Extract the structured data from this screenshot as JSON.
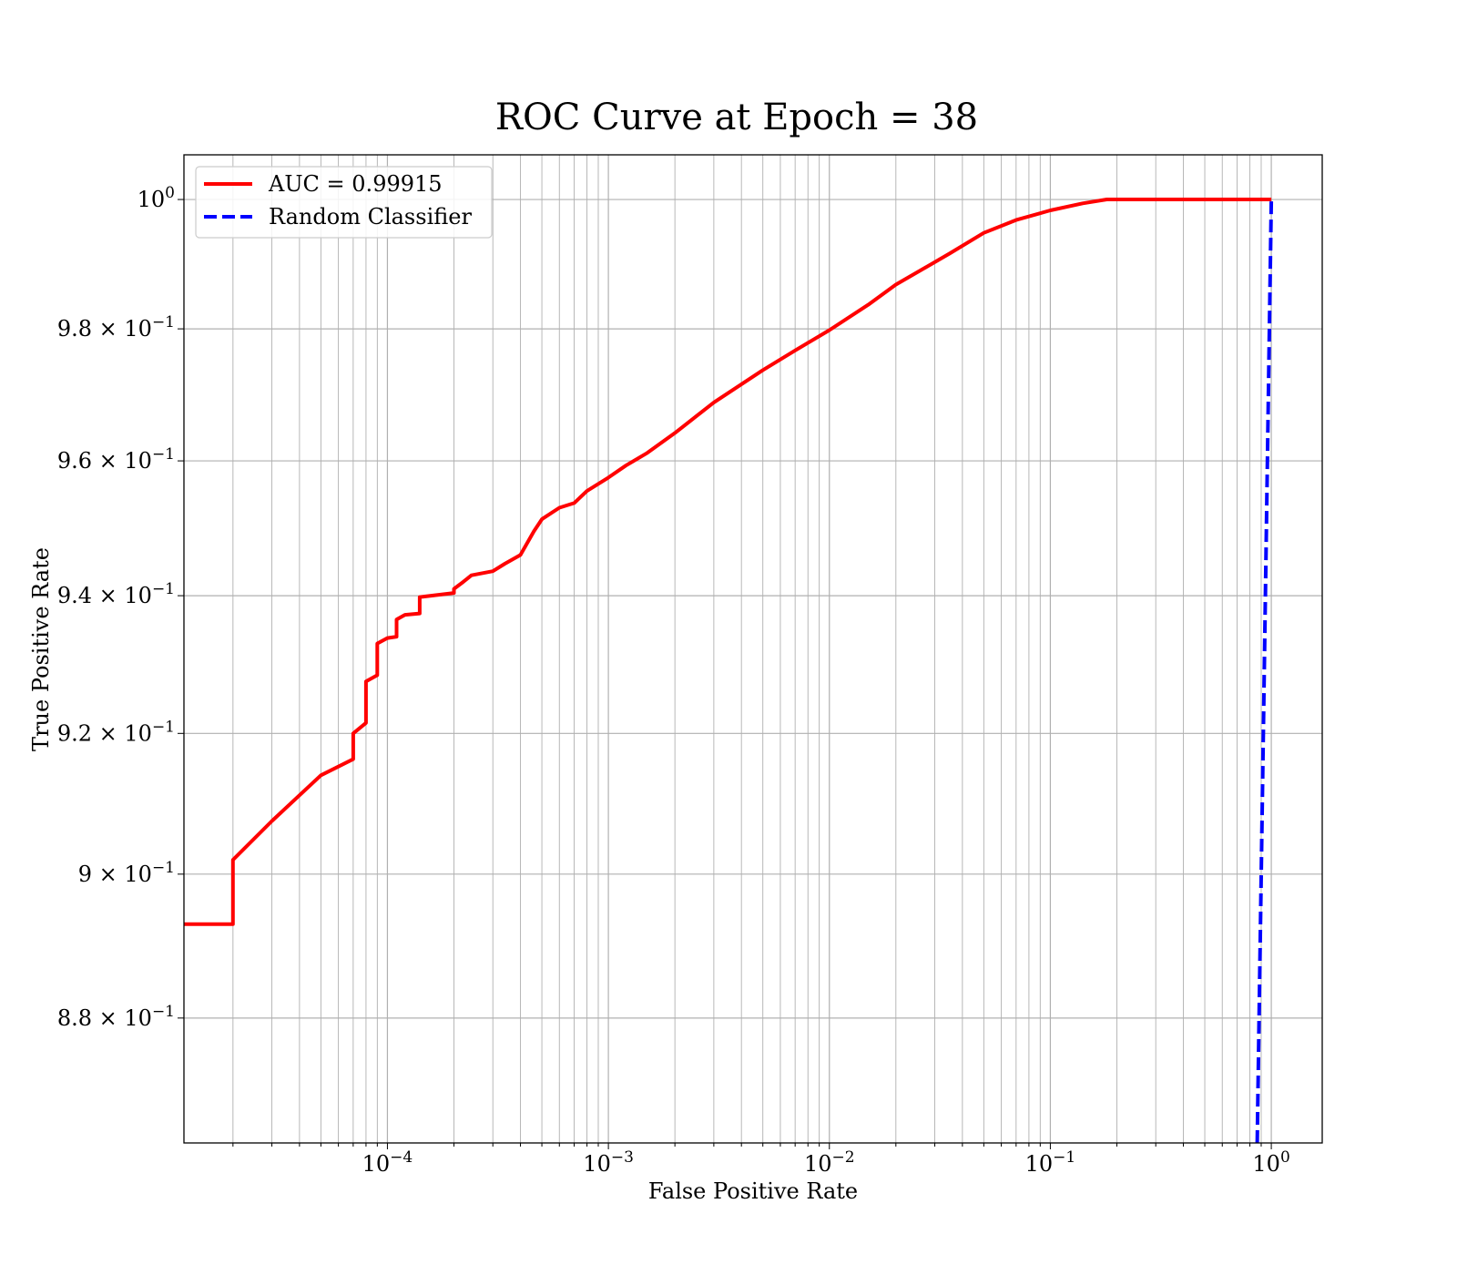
{
  "chart_data": {
    "type": "line",
    "title": "ROC Curve at Epoch = 38",
    "xlabel": "False Positive Rate",
    "ylabel": "True Positive Rate",
    "xscale": "log",
    "yscale": "log",
    "xlim": [
      1.2e-05,
      1.7
    ],
    "ylim": [
      0.863,
      1.007
    ],
    "grid": true,
    "grid_minor": true,
    "legend_position": "upper-left",
    "x_ticks": [
      {
        "value": 0.0001,
        "base": "10",
        "exp": "−4"
      },
      {
        "value": 0.001,
        "base": "10",
        "exp": "−3"
      },
      {
        "value": 0.01,
        "base": "10",
        "exp": "−2"
      },
      {
        "value": 0.1,
        "base": "10",
        "exp": "−1"
      },
      {
        "value": 1,
        "base": "10",
        "exp": "0"
      }
    ],
    "y_ticks": [
      {
        "value": 1.0,
        "base": "10",
        "exp": "0"
      },
      {
        "value": 0.98,
        "base": "9.8 × 10",
        "exp": "−1"
      },
      {
        "value": 0.96,
        "base": "9.6 × 10",
        "exp": "−1"
      },
      {
        "value": 0.94,
        "base": "9.4 × 10",
        "exp": "−1"
      },
      {
        "value": 0.92,
        "base": "9.2 × 10",
        "exp": "−1"
      },
      {
        "value": 0.9,
        "base": "9 × 10",
        "exp": "−1"
      },
      {
        "value": 0.88,
        "base": "8.8 × 10",
        "exp": "−1"
      }
    ],
    "series": [
      {
        "name": "AUC = 0.99915",
        "color": "#ff0000",
        "style": "solid",
        "x": [
          1.2e-05,
          2e-05,
          2e-05,
          3e-05,
          5e-05,
          7e-05,
          7e-05,
          8e-05,
          8e-05,
          9e-05,
          9e-05,
          0.0001,
          0.00011,
          0.00011,
          0.00012,
          0.00014,
          0.00014,
          0.0002,
          0.0002,
          0.00022,
          0.00024,
          0.0003,
          0.00034,
          0.0004,
          0.00046,
          0.0005,
          0.0006,
          0.0007,
          0.0008,
          0.001,
          0.0012,
          0.0015,
          0.002,
          0.003,
          0.005,
          0.007,
          0.01,
          0.015,
          0.02,
          0.035,
          0.05,
          0.07,
          0.1,
          0.14,
          0.18,
          0.3,
          0.5,
          1.0
        ],
        "y": [
          0.893,
          0.893,
          0.902,
          0.9075,
          0.914,
          0.9163,
          0.92,
          0.9215,
          0.9275,
          0.9284,
          0.933,
          0.9338,
          0.934,
          0.9365,
          0.9372,
          0.9374,
          0.9398,
          0.9404,
          0.941,
          0.942,
          0.943,
          0.9436,
          0.9447,
          0.946,
          0.9495,
          0.9513,
          0.953,
          0.9537,
          0.9555,
          0.9575,
          0.9593,
          0.9612,
          0.9642,
          0.9688,
          0.9737,
          0.9767,
          0.9798,
          0.9837,
          0.9868,
          0.9916,
          0.9948,
          0.9968,
          0.9983,
          0.9994,
          1.0,
          1.0,
          1.0,
          1.0
        ]
      },
      {
        "name": "Random Classifier",
        "color": "#0000ff",
        "style": "dashed",
        "x": [
          0.863,
          1.0
        ],
        "y": [
          0.863,
          1.0
        ]
      }
    ]
  }
}
